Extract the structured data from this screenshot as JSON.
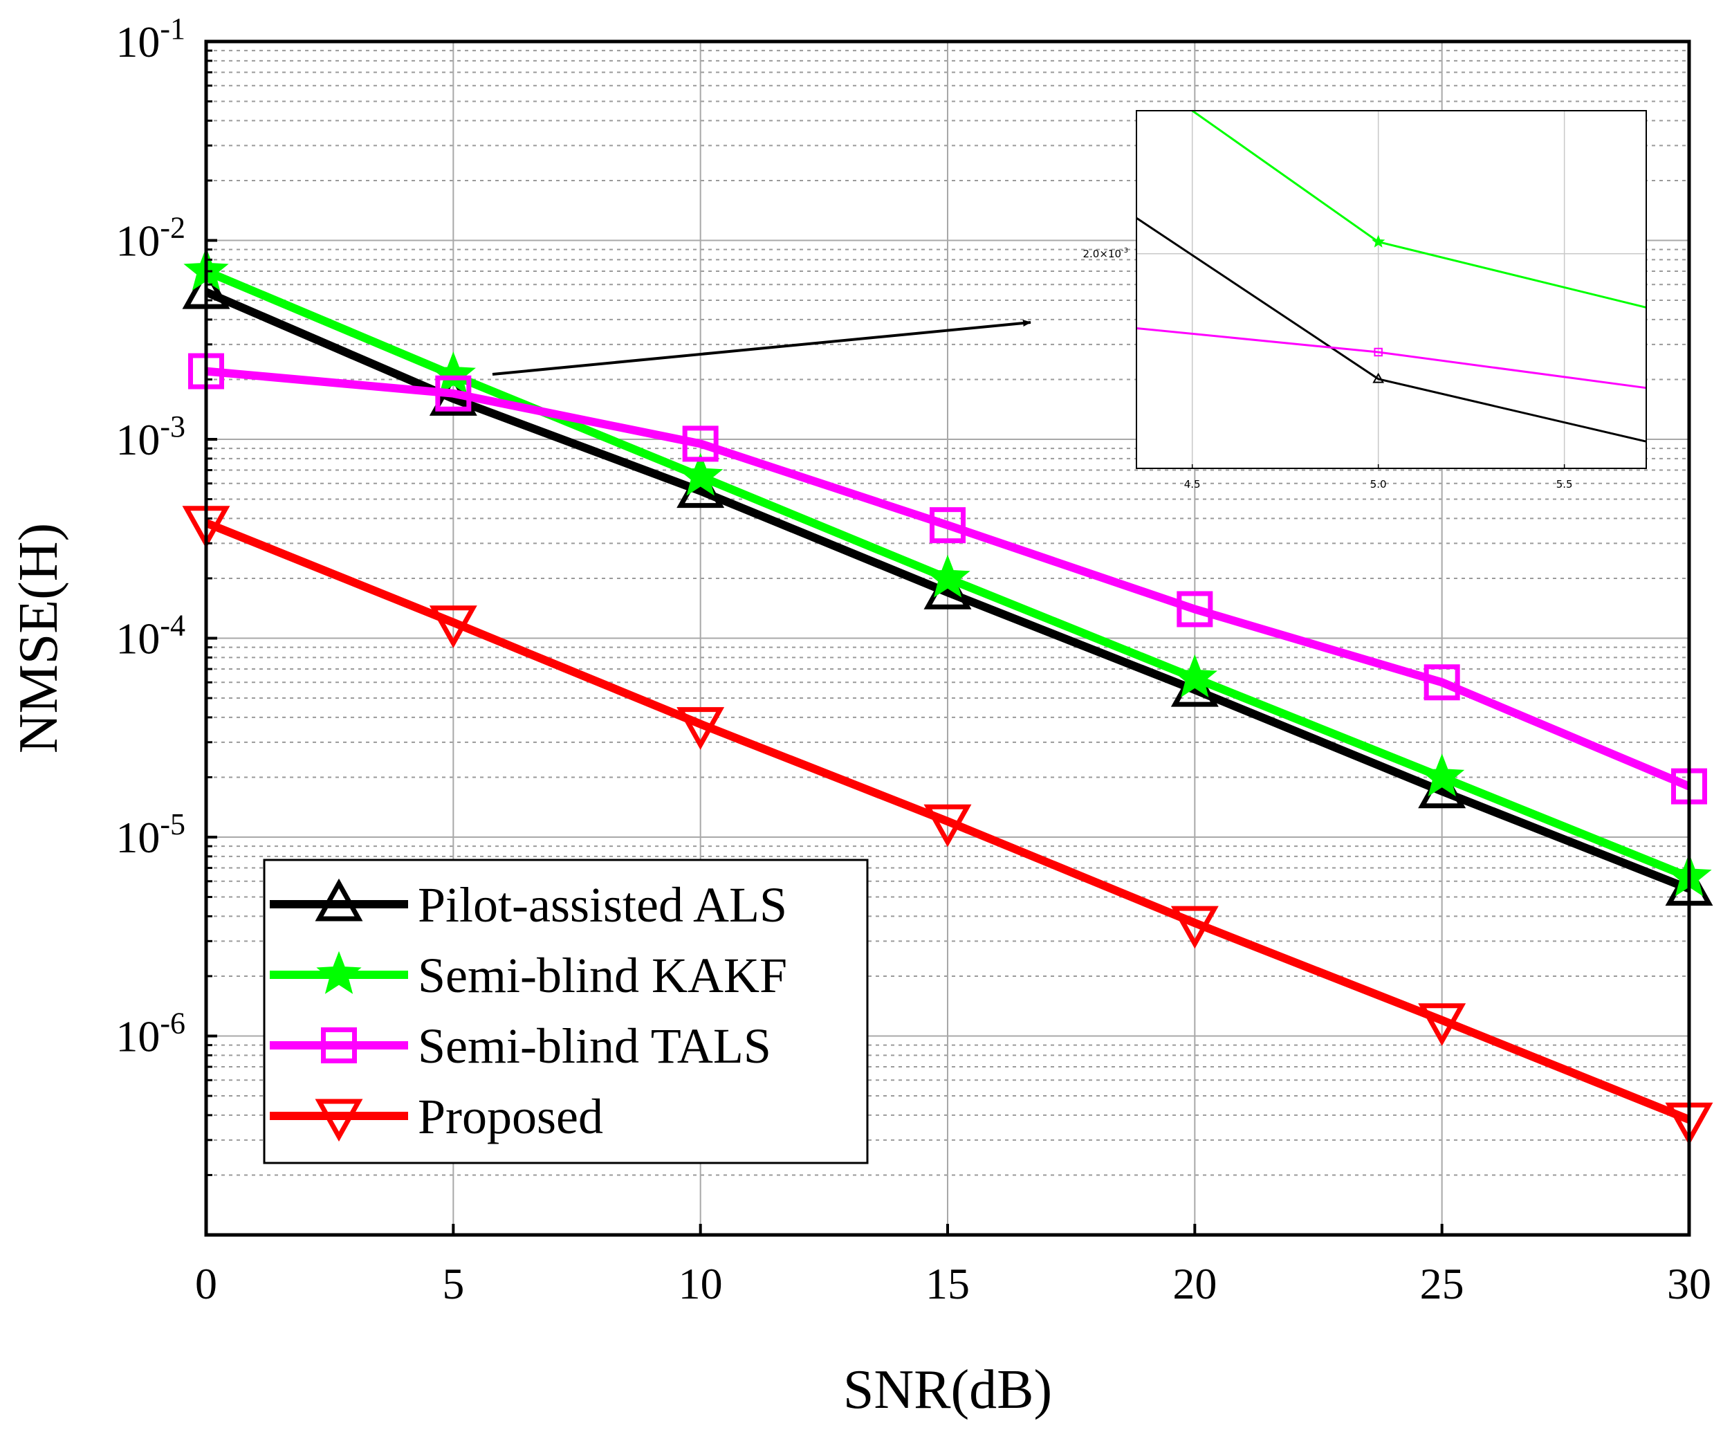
{
  "colors": {
    "pilot_als": "#000000",
    "kakf": "#00ff00",
    "tals": "#ff00ff",
    "proposed": "#ff0000"
  },
  "chart_data": [
    {
      "type": "line",
      "xlabel": "SNR(dB)",
      "ylabel": "NMSE(H)",
      "x": [
        0,
        5,
        10,
        15,
        20,
        25,
        30
      ],
      "xlim": [
        0,
        30
      ],
      "ylim": [
        1e-07,
        0.1
      ],
      "y_scale": "log",
      "xticks": [
        "0",
        "5",
        "10",
        "15",
        "20",
        "25",
        "30"
      ],
      "yticks": [
        {
          "base": "10",
          "exp": "-1",
          "value": 0.1
        },
        {
          "base": "10",
          "exp": "-2",
          "value": 0.01
        },
        {
          "base": "10",
          "exp": "-3",
          "value": 0.001
        },
        {
          "base": "10",
          "exp": "-4",
          "value": 0.0001
        },
        {
          "base": "10",
          "exp": "-5",
          "value": 1e-05
        },
        {
          "base": "10",
          "exp": "-6",
          "value": 1e-06
        }
      ],
      "grid": true,
      "legend_position": "bottom-left",
      "series": [
        {
          "name": "Pilot-assisted ALS",
          "marker": "triangle-up",
          "color_key": "pilot_als",
          "values": [
            0.0055,
            0.0016,
            0.00055,
            0.00017,
            5.5e-05,
            1.7e-05,
            5.5e-06
          ]
        },
        {
          "name": "Semi-blind KAKF",
          "marker": "star",
          "color_key": "kakf",
          "values": [
            0.007,
            0.0021,
            0.00065,
            0.0002,
            6.3e-05,
            2e-05,
            6.3e-06
          ]
        },
        {
          "name": "Semi-blind TALS",
          "marker": "square",
          "color_key": "tals",
          "values": [
            0.0022,
            0.0017,
            0.00095,
            0.00037,
            0.00014,
            6e-05,
            1.8e-05
          ]
        },
        {
          "name": "Proposed",
          "marker": "triangle-down",
          "color_key": "proposed",
          "values": [
            0.00038,
            0.00012,
            3.7e-05,
            1.2e-05,
            3.7e-06,
            1.2e-06,
            3.8e-07
          ]
        }
      ]
    },
    {
      "type": "line",
      "role": "inset zoom",
      "x": [
        4.5,
        5.0,
        5.5
      ],
      "xlim": [
        4.35,
        5.72
      ],
      "ylim": [
        0.00128,
        0.00248
      ],
      "xticks": [
        "4.5",
        "5.0",
        "5.5"
      ],
      "ytick": {
        "base": "2.0×10",
        "exp": "-3",
        "value": 0.002
      },
      "grid": true,
      "series": [
        {
          "color_key": "pilot_als",
          "marker": "triangle-up",
          "points": [
            [
              4.35,
              0.00212
            ],
            [
              5.0,
              0.00158
            ],
            [
              5.72,
              0.00137
            ]
          ]
        },
        {
          "color_key": "kakf",
          "marker": "star",
          "points": [
            [
              4.5,
              0.00248
            ],
            [
              5.0,
              0.00204
            ],
            [
              5.72,
              0.00182
            ]
          ]
        },
        {
          "color_key": "tals",
          "marker": "square",
          "points": [
            [
              4.35,
              0.00175
            ],
            [
              5.0,
              0.00167
            ],
            [
              5.72,
              0.00155
            ]
          ]
        }
      ]
    }
  ]
}
